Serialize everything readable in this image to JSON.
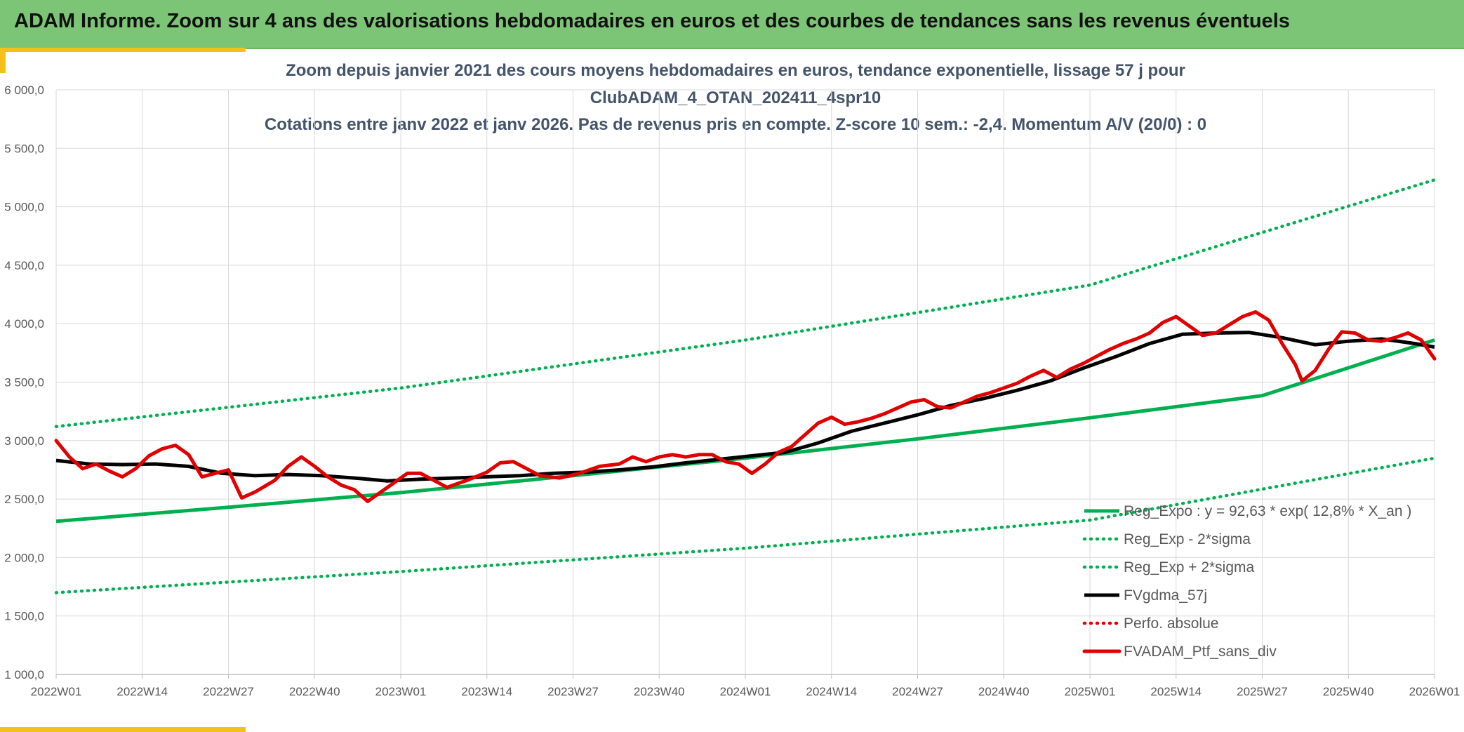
{
  "window": {
    "title": "ADAM Informe. Zoom sur 4 ans des valorisations hebdomadaires en euros et des courbes de tendances sans les revenus éventuels"
  },
  "colors": {
    "banner": "#7dc576",
    "accent": "#f2c21a",
    "trend": "#00b050",
    "smoothed": "#000000",
    "portfolio": "#e00000"
  },
  "chart_data": {
    "type": "line",
    "title_lines": [
      "Zoom depuis janvier 2021 des cours moyens hebdomadaires en euros, tendance exponentielle, lissage 57 j pour",
      "ClubADAM_4_OTAN_202411_4spr10",
      "Cotations entre janv 2022 et janv 2026. Pas de revenus pris en compte. Z-score 10 sem.: -2,4. Momentum A/V (20/0) : 0"
    ],
    "x_ticks": [
      "2022W01",
      "2022W14",
      "2022W27",
      "2022W40",
      "2023W01",
      "2023W14",
      "2023W27",
      "2023W40",
      "2024W01",
      "2024W14",
      "2024W27",
      "2024W40",
      "2025W01",
      "2025W14",
      "2025W27",
      "2025W40",
      "2026W01"
    ],
    "x_range_weeks": [
      0,
      208
    ],
    "ylim": [
      1000,
      6000
    ],
    "y_ticks": [
      {
        "value": 1000,
        "label": "1 000,0"
      },
      {
        "value": 1500,
        "label": "1 500,0"
      },
      {
        "value": 2000,
        "label": "2 000,0"
      },
      {
        "value": 2500,
        "label": "2 500,0"
      },
      {
        "value": 3000,
        "label": "3 000,0"
      },
      {
        "value": 3500,
        "label": "3 500,0"
      },
      {
        "value": 4000,
        "label": "4 000,0"
      },
      {
        "value": 4500,
        "label": "4 500,0"
      },
      {
        "value": 5000,
        "label": "5 000,0"
      },
      {
        "value": 5500,
        "label": "5 500,0"
      },
      {
        "value": 6000,
        "label": "6 000,0"
      }
    ],
    "grid": true,
    "legend_position": "bottom-right",
    "series": [
      {
        "name": "Reg_Expo : y = 92,63 * exp( 12,8% *  X_an )",
        "color": "#00b050",
        "style": "solid",
        "points": [
          [
            0,
            2310
          ],
          [
            26,
            2430
          ],
          [
            52,
            2555
          ],
          [
            78,
            2700
          ],
          [
            104,
            2850
          ],
          [
            130,
            3015
          ],
          [
            156,
            3195
          ],
          [
            182,
            3385
          ],
          [
            208,
            3860
          ]
        ]
      },
      {
        "name": "Reg_Exp - 2*sigma",
        "color": "#00b050",
        "style": "dotted",
        "points": [
          [
            0,
            1700
          ],
          [
            52,
            1880
          ],
          [
            104,
            2080
          ],
          [
            156,
            2320
          ],
          [
            208,
            2850
          ]
        ]
      },
      {
        "name": "Reg_Exp + 2*sigma",
        "color": "#00b050",
        "style": "dotted",
        "points": [
          [
            0,
            3120
          ],
          [
            52,
            3450
          ],
          [
            104,
            3860
          ],
          [
            156,
            4330
          ],
          [
            208,
            5230
          ]
        ]
      },
      {
        "name": "FVgdma_57j",
        "color": "#000000",
        "style": "solid",
        "points": [
          [
            0,
            2830
          ],
          [
            5,
            2800
          ],
          [
            10,
            2795
          ],
          [
            15,
            2800
          ],
          [
            20,
            2780
          ],
          [
            25,
            2720
          ],
          [
            30,
            2700
          ],
          [
            35,
            2710
          ],
          [
            40,
            2700
          ],
          [
            45,
            2680
          ],
          [
            50,
            2655
          ],
          [
            55,
            2670
          ],
          [
            60,
            2680
          ],
          [
            65,
            2690
          ],
          [
            70,
            2700
          ],
          [
            75,
            2720
          ],
          [
            80,
            2730
          ],
          [
            85,
            2750
          ],
          [
            90,
            2775
          ],
          [
            95,
            2810
          ],
          [
            100,
            2840
          ],
          [
            105,
            2870
          ],
          [
            110,
            2900
          ],
          [
            115,
            2980
          ],
          [
            120,
            3080
          ],
          [
            125,
            3150
          ],
          [
            130,
            3220
          ],
          [
            135,
            3300
          ],
          [
            140,
            3360
          ],
          [
            145,
            3430
          ],
          [
            150,
            3510
          ],
          [
            155,
            3620
          ],
          [
            160,
            3720
          ],
          [
            165,
            3830
          ],
          [
            170,
            3910
          ],
          [
            175,
            3920
          ],
          [
            180,
            3925
          ],
          [
            185,
            3880
          ],
          [
            190,
            3820
          ],
          [
            195,
            3850
          ],
          [
            200,
            3870
          ],
          [
            205,
            3830
          ],
          [
            208,
            3800
          ]
        ]
      },
      {
        "name": "Perfo. absolue",
        "color": "#e00000",
        "style": "dotted",
        "points": []
      },
      {
        "name": "FVADAM_Ptf_sans_div",
        "color": "#e00000",
        "style": "solid",
        "points": [
          [
            0,
            3000
          ],
          [
            2,
            2860
          ],
          [
            4,
            2760
          ],
          [
            6,
            2800
          ],
          [
            8,
            2740
          ],
          [
            10,
            2690
          ],
          [
            12,
            2760
          ],
          [
            14,
            2870
          ],
          [
            16,
            2930
          ],
          [
            18,
            2960
          ],
          [
            20,
            2880
          ],
          [
            22,
            2690
          ],
          [
            24,
            2720
          ],
          [
            26,
            2750
          ],
          [
            28,
            2510
          ],
          [
            30,
            2560
          ],
          [
            33,
            2660
          ],
          [
            35,
            2780
          ],
          [
            37,
            2860
          ],
          [
            39,
            2780
          ],
          [
            41,
            2690
          ],
          [
            43,
            2620
          ],
          [
            45,
            2580
          ],
          [
            47,
            2480
          ],
          [
            49,
            2560
          ],
          [
            51,
            2640
          ],
          [
            53,
            2720
          ],
          [
            55,
            2720
          ],
          [
            57,
            2660
          ],
          [
            59,
            2600
          ],
          [
            62,
            2660
          ],
          [
            65,
            2730
          ],
          [
            67,
            2810
          ],
          [
            69,
            2820
          ],
          [
            71,
            2760
          ],
          [
            73,
            2700
          ],
          [
            76,
            2680
          ],
          [
            79,
            2720
          ],
          [
            82,
            2780
          ],
          [
            85,
            2800
          ],
          [
            87,
            2860
          ],
          [
            89,
            2820
          ],
          [
            91,
            2860
          ],
          [
            93,
            2880
          ],
          [
            95,
            2860
          ],
          [
            97,
            2880
          ],
          [
            99,
            2880
          ],
          [
            101,
            2820
          ],
          [
            103,
            2800
          ],
          [
            105,
            2720
          ],
          [
            107,
            2800
          ],
          [
            109,
            2900
          ],
          [
            111,
            2950
          ],
          [
            113,
            3050
          ],
          [
            115,
            3150
          ],
          [
            117,
            3200
          ],
          [
            119,
            3140
          ],
          [
            121,
            3160
          ],
          [
            123,
            3190
          ],
          [
            125,
            3230
          ],
          [
            127,
            3280
          ],
          [
            129,
            3330
          ],
          [
            131,
            3350
          ],
          [
            133,
            3290
          ],
          [
            135,
            3280
          ],
          [
            137,
            3330
          ],
          [
            139,
            3380
          ],
          [
            141,
            3410
          ],
          [
            143,
            3450
          ],
          [
            145,
            3490
          ],
          [
            147,
            3550
          ],
          [
            149,
            3600
          ],
          [
            151,
            3540
          ],
          [
            153,
            3610
          ],
          [
            155,
            3660
          ],
          [
            157,
            3720
          ],
          [
            159,
            3780
          ],
          [
            161,
            3830
          ],
          [
            163,
            3870
          ],
          [
            165,
            3920
          ],
          [
            167,
            4010
          ],
          [
            169,
            4060
          ],
          [
            171,
            3980
          ],
          [
            173,
            3900
          ],
          [
            175,
            3920
          ],
          [
            177,
            3990
          ],
          [
            179,
            4060
          ],
          [
            181,
            4100
          ],
          [
            183,
            4030
          ],
          [
            185,
            3830
          ],
          [
            187,
            3650
          ],
          [
            188,
            3510
          ],
          [
            190,
            3600
          ],
          [
            192,
            3780
          ],
          [
            194,
            3930
          ],
          [
            196,
            3920
          ],
          [
            198,
            3860
          ],
          [
            200,
            3850
          ],
          [
            202,
            3880
          ],
          [
            204,
            3920
          ],
          [
            206,
            3860
          ],
          [
            208,
            3700
          ]
        ]
      }
    ]
  }
}
